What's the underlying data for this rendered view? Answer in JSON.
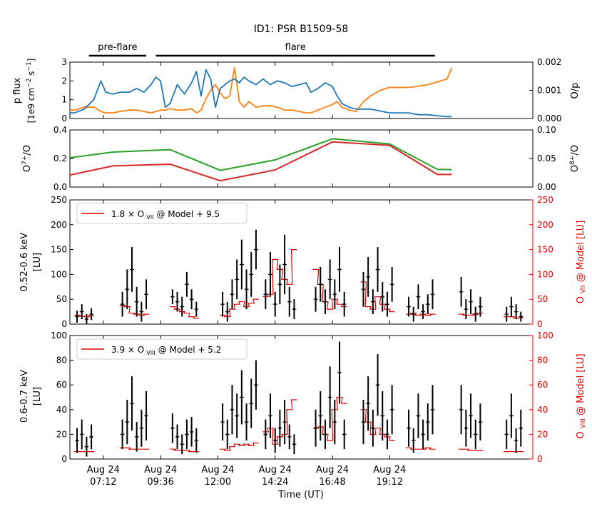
{
  "figure": {
    "title": "ID1: PSR B1509-58",
    "xlabel": "Time (UT)",
    "colors": {
      "pflux": "#1f77b4",
      "ratio": "#ff7f0e",
      "o7": "#2ca02c",
      "o8": "#d62728",
      "model": "#e00000",
      "data": "#000000"
    }
  },
  "chart_data": [
    {
      "type": "line",
      "panel": "flux",
      "ylabel_left": [
        "p flux",
        "[1e9 cm^-2 s^-1]"
      ],
      "ylabel_right": "O/p",
      "ylim_left": [
        0,
        3
      ],
      "ylim_right": [
        0,
        0.002
      ],
      "yticks_left": [
        "0",
        "1",
        "2",
        "3"
      ],
      "yticks_right": [
        "0.000",
        "0.001",
        "0.002"
      ],
      "x_hours": [
        5.8,
        6.0,
        6.4,
        6.8,
        7.1,
        7.3,
        7.6,
        7.9,
        8.3,
        8.6,
        8.9,
        9.2,
        9.4,
        9.6,
        9.8,
        10.0,
        10.3,
        10.6,
        10.9,
        11.1,
        11.3,
        11.5,
        11.7,
        11.9,
        12.1,
        12.3,
        12.5,
        12.7,
        12.9,
        13.1,
        13.3,
        13.6,
        13.9,
        14.2,
        14.5,
        14.8,
        15.1,
        15.4,
        15.7,
        15.9,
        16.2,
        16.5,
        16.8,
        17.0,
        17.2,
        17.5,
        17.8,
        18.1,
        18.4,
        18.8,
        19.2,
        19.6,
        20.0,
        20.4,
        20.8,
        21.2,
        21.6,
        21.8
      ],
      "series": [
        {
          "name": "p flux",
          "axis": "left",
          "values": [
            0.3,
            0.3,
            0.5,
            1.0,
            2.0,
            1.4,
            1.3,
            1.4,
            1.4,
            1.6,
            1.4,
            1.8,
            2.2,
            2.0,
            0.6,
            0.8,
            1.8,
            1.3,
            1.9,
            2.5,
            1.2,
            2.6,
            2.1,
            0.6,
            1.6,
            1.8,
            2.0,
            2.1,
            1.9,
            2.2,
            2.0,
            1.8,
            2.1,
            1.8,
            2.0,
            1.9,
            1.7,
            1.8,
            1.9,
            1.4,
            1.6,
            1.9,
            1.7,
            1.2,
            0.8,
            0.6,
            0.5,
            0.5,
            0.5,
            0.4,
            0.3,
            0.3,
            0.3,
            0.2,
            0.2,
            0.15,
            0.1,
            0.1
          ]
        },
        {
          "name": "O/p",
          "axis": "right",
          "values": [
            0.0003,
            0.0003,
            0.0004,
            0.0004,
            0.00025,
            0.0002,
            0.0002,
            0.00025,
            0.0003,
            0.0003,
            0.00025,
            0.0002,
            0.00025,
            0.0003,
            0.0003,
            0.00035,
            0.0003,
            0.0003,
            0.00035,
            0.0002,
            0.0003,
            0.0007,
            0.001,
            0.0012,
            0.0009,
            0.0007,
            0.0008,
            0.0018,
            0.0006,
            0.0004,
            0.0006,
            0.0004,
            0.00045,
            0.00045,
            0.0004,
            0.0003,
            0.0003,
            0.00025,
            0.0002,
            0.0002,
            0.0003,
            0.0004,
            0.0005,
            0.0006,
            0.0004,
            0.0003,
            0.00025,
            0.0006,
            0.0008,
            0.001,
            0.0011,
            0.0011,
            0.0011,
            0.00115,
            0.0012,
            0.0013,
            0.0014,
            0.0018
          ]
        }
      ]
    },
    {
      "type": "line",
      "panel": "charge",
      "ylabel_left": "O7+/O",
      "ylabel_right": "O8+/O",
      "ylim_left": [
        0,
        0.4
      ],
      "ylim_right": [
        0,
        0.1
      ],
      "yticks_left": [
        "0.0",
        "0.2",
        "0.4"
      ],
      "yticks_right": [
        "0.00",
        "0.05",
        "0.10"
      ],
      "series": [
        {
          "name": "O7+/O",
          "axis": "left",
          "x_hours": [
            5.8,
            7.6,
            10.0,
            12.1,
            14.4,
            16.8,
            19.2,
            21.2,
            21.8
          ],
          "values": [
            0.205,
            0.245,
            0.262,
            0.117,
            0.19,
            0.338,
            0.302,
            0.124,
            0.122
          ]
        },
        {
          "name": "O8+/O",
          "axis": "right",
          "x_hours": [
            5.8,
            7.6,
            10.0,
            12.1,
            14.4,
            16.8,
            19.2,
            21.2,
            21.8
          ],
          "values": [
            0.021,
            0.037,
            0.04,
            0.011,
            0.03,
            0.079,
            0.073,
            0.022,
            0.022
          ]
        }
      ]
    },
    {
      "type": "scatter",
      "panel": "o7",
      "ylabel_left": [
        "0.52-0.6 keV",
        "[LU]"
      ],
      "ylabel_right": "O VII @ Model [LU]",
      "ylim": [
        0,
        250
      ],
      "yticks": [
        "0",
        "50",
        "100",
        "150",
        "200",
        "250"
      ],
      "legend": {
        "prefix": "1.8 × O",
        "ion": "VII",
        "suffix": "@ Model + 9.5",
        "placement": "top-left"
      },
      "segments": [
        {
          "x": [
            6.1,
            6.3,
            6.5,
            6.7
          ],
          "values": [
            15,
            25,
            10,
            20
          ],
          "err": [
            12,
            15,
            10,
            12
          ],
          "model": [
            18,
            16,
            15,
            17
          ]
        },
        {
          "x": [
            8.0,
            8.2,
            8.4,
            8.6,
            8.8,
            9.0
          ],
          "values": [
            40,
            70,
            110,
            45,
            25,
            60
          ],
          "err": [
            25,
            40,
            45,
            30,
            20,
            30
          ],
          "model": [
            38,
            35,
            22,
            20,
            18,
            20
          ]
        },
        {
          "x": [
            10.1,
            10.3,
            10.5,
            10.7,
            10.9,
            11.1
          ],
          "values": [
            55,
            45,
            35,
            80,
            50,
            30
          ],
          "err": [
            15,
            20,
            20,
            25,
            20,
            15
          ],
          "model": [
            35,
            30,
            25,
            22,
            15,
            12
          ]
        },
        {
          "x": [
            12.2,
            12.4,
            12.6,
            12.8,
            13.0,
            13.2,
            13.4,
            13.6
          ],
          "values": [
            40,
            25,
            60,
            90,
            120,
            70,
            100,
            150
          ],
          "err": [
            25,
            20,
            30,
            40,
            50,
            40,
            45,
            40
          ],
          "model": [
            18,
            15,
            30,
            40,
            45,
            35,
            42,
            50
          ]
        },
        {
          "x": [
            14.0,
            14.2,
            14.4,
            14.6,
            14.8,
            15.0,
            15.2
          ],
          "values": [
            60,
            100,
            40,
            80,
            120,
            45,
            30
          ],
          "err": [
            30,
            45,
            25,
            40,
            60,
            30,
            20
          ],
          "model": [
            55,
            60,
            130,
            110,
            90,
            80,
            150
          ]
        },
        {
          "x": [
            16.1,
            16.3,
            16.5,
            16.7,
            16.9,
            17.1,
            17.3
          ],
          "values": [
            50,
            80,
            45,
            90,
            60,
            110,
            40
          ],
          "err": [
            25,
            35,
            25,
            40,
            30,
            45,
            25
          ],
          "model": [
            110,
            80,
            45,
            30,
            50,
            40,
            35
          ]
        },
        {
          "x": [
            18.1,
            18.3,
            18.5,
            18.7,
            18.9,
            19.1,
            19.3
          ],
          "values": [
            70,
            95,
            45,
            110,
            55,
            40,
            80
          ],
          "err": [
            35,
            40,
            25,
            45,
            30,
            25,
            35
          ],
          "model": [
            85,
            35,
            30,
            55,
            40,
            30,
            25
          ]
        },
        {
          "x": [
            20.0,
            20.2,
            20.4,
            20.6,
            20.8,
            21.0
          ],
          "values": [
            35,
            20,
            55,
            25,
            40,
            60
          ],
          "err": [
            20,
            15,
            25,
            15,
            20,
            30
          ],
          "model": [
            20,
            22,
            18,
            20,
            18,
            20
          ]
        },
        {
          "x": [
            22.2,
            22.4,
            22.6,
            22.8,
            23.0
          ],
          "values": [
            65,
            30,
            45,
            20,
            35
          ],
          "err": [
            30,
            20,
            25,
            15,
            20
          ],
          "model": [
            20,
            18,
            18,
            20,
            22
          ]
        },
        {
          "x": [
            24.1,
            24.3,
            24.5,
            24.7
          ],
          "values": [
            20,
            35,
            25,
            15
          ],
          "err": [
            15,
            20,
            15,
            10
          ],
          "model": [
            15,
            15,
            12,
            13
          ]
        }
      ]
    },
    {
      "type": "scatter",
      "panel": "o8",
      "ylabel_left": [
        "0.6-0.7 keV",
        "[LU]"
      ],
      "ylabel_right": "O VIII @ Model [LU]",
      "ylim": [
        0,
        100
      ],
      "yticks": [
        "0",
        "20",
        "40",
        "60",
        "80",
        "100"
      ],
      "legend": {
        "prefix": "3.9 × O",
        "ion": "VIII",
        "suffix": "@ Model + 5.2",
        "placement": "top-left"
      },
      "segments": [
        {
          "x": [
            6.1,
            6.3,
            6.5,
            6.7
          ],
          "values": [
            15,
            20,
            10,
            18
          ],
          "err": [
            10,
            12,
            8,
            10
          ],
          "model": [
            6,
            6,
            6,
            6
          ]
        },
        {
          "x": [
            8.0,
            8.2,
            8.4,
            8.6,
            8.8,
            9.0
          ],
          "values": [
            20,
            30,
            45,
            18,
            25,
            35
          ],
          "err": [
            12,
            18,
            22,
            12,
            15,
            20
          ],
          "model": [
            9,
            9,
            8,
            8,
            8,
            8
          ]
        },
        {
          "x": [
            10.1,
            10.3,
            10.5,
            10.7,
            10.9,
            11.1
          ],
          "values": [
            25,
            18,
            12,
            20,
            22,
            15
          ],
          "err": [
            12,
            10,
            8,
            12,
            12,
            10
          ],
          "model": [
            8,
            7,
            7,
            7,
            6,
            6
          ]
        },
        {
          "x": [
            12.2,
            12.4,
            12.6,
            12.8,
            13.0,
            13.2,
            13.4,
            13.6
          ],
          "values": [
            30,
            20,
            40,
            35,
            50,
            30,
            45,
            60
          ],
          "err": [
            15,
            12,
            20,
            18,
            22,
            15,
            20,
            20
          ],
          "model": [
            8,
            7,
            10,
            12,
            11,
            12,
            11,
            13
          ]
        },
        {
          "x": [
            14.0,
            14.2,
            14.4,
            14.6,
            14.8,
            15.0,
            15.2
          ],
          "values": [
            20,
            35,
            15,
            25,
            30,
            18,
            12
          ],
          "err": [
            12,
            18,
            10,
            15,
            18,
            10,
            8
          ],
          "model": [
            22,
            25,
            12,
            18,
            20,
            40,
            48
          ]
        },
        {
          "x": [
            16.1,
            16.3,
            16.5,
            16.7,
            16.9,
            17.1,
            17.3
          ],
          "values": [
            25,
            35,
            20,
            50,
            30,
            70,
            20
          ],
          "err": [
            15,
            20,
            12,
            25,
            18,
            25,
            12
          ],
          "model": [
            25,
            26,
            20,
            15,
            40,
            50,
            45
          ]
        },
        {
          "x": [
            18.1,
            18.3,
            18.5,
            18.7,
            18.9,
            19.1,
            19.3
          ],
          "values": [
            30,
            45,
            25,
            60,
            35,
            20,
            40
          ],
          "err": [
            18,
            22,
            15,
            25,
            20,
            12,
            20
          ],
          "model": [
            40,
            30,
            20,
            25,
            20,
            18,
            15
          ]
        },
        {
          "x": [
            20.0,
            20.2,
            20.4,
            20.6,
            20.8,
            21.0
          ],
          "values": [
            25,
            15,
            35,
            20,
            30,
            40
          ],
          "err": [
            15,
            10,
            18,
            12,
            15,
            20
          ],
          "model": [
            9,
            8,
            8,
            8,
            9,
            8
          ]
        },
        {
          "x": [
            22.2,
            22.4,
            22.6,
            22.8,
            23.0
          ],
          "values": [
            40,
            25,
            35,
            20,
            30
          ],
          "err": [
            20,
            15,
            18,
            12,
            15
          ],
          "model": [
            8,
            8,
            7,
            7,
            7
          ]
        },
        {
          "x": [
            24.1,
            24.3,
            24.5,
            24.7
          ],
          "values": [
            20,
            35,
            15,
            25
          ],
          "err": [
            12,
            18,
            10,
            15
          ],
          "model": [
            6,
            6,
            6,
            6
          ]
        }
      ]
    }
  ],
  "xaxis": {
    "ticks": [
      {
        "hour": 7.2,
        "line1": "Aug 24",
        "line2": "07:12"
      },
      {
        "hour": 9.6,
        "line1": "Aug 24",
        "line2": "09:36"
      },
      {
        "hour": 12.0,
        "line1": "Aug 24",
        "line2": "12:00"
      },
      {
        "hour": 14.4,
        "line1": "Aug 24",
        "line2": "14:24"
      },
      {
        "hour": 16.8,
        "line1": "Aug 24",
        "line2": "16:48"
      },
      {
        "hour": 19.2,
        "line1": "Aug 24",
        "line2": "19:12"
      }
    ]
  },
  "annotations": {
    "preflare": {
      "label": "pre-flare",
      "start_hour": 6.6,
      "end_hour": 9.0
    },
    "flare": {
      "label": "flare",
      "start_hour": 9.4,
      "end_hour": 21.1
    }
  }
}
